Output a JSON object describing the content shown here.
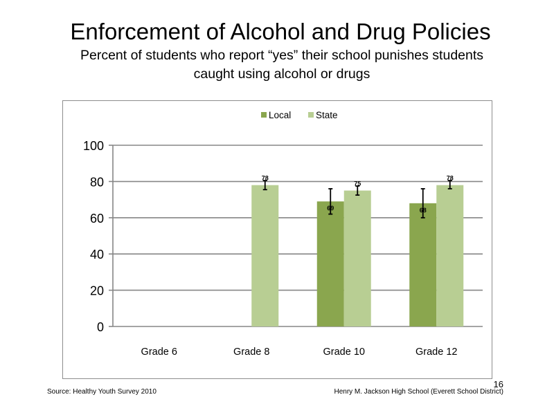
{
  "title": "Enforcement of Alcohol and Drug Policies",
  "subtitle_line1": "Percent of students who report “yes” their school punishes students",
  "subtitle_line2": "caught using alcohol or drugs",
  "footer": {
    "source": "Source: Healthy Youth Survey 2010",
    "school": "Henry M. Jackson High School (Everett School District)",
    "page_number": "16"
  },
  "colors": {
    "local": "#8aa64e",
    "state": "#b8ce93",
    "grid": "#868686",
    "axis": "#868686"
  },
  "chart_data": {
    "type": "bar",
    "title": "",
    "xlabel": "",
    "ylabel": "",
    "categories": [
      "Grade 6",
      "Grade 8",
      "Grade 10",
      "Grade 12"
    ],
    "ylim": [
      0,
      100
    ],
    "yticks": [
      0,
      20,
      40,
      60,
      80,
      100
    ],
    "legend_position": "top-center",
    "grid": true,
    "series": [
      {
        "name": "Local",
        "values": [
          null,
          null,
          69,
          68
        ],
        "labels": [
          "",
          "",
          "69",
          "68"
        ],
        "error_low": [
          null,
          null,
          62,
          60
        ],
        "error_high": [
          null,
          null,
          76,
          76
        ]
      },
      {
        "name": "State",
        "values": [
          null,
          78,
          75,
          78
        ],
        "labels": [
          "",
          "78",
          "75",
          "78"
        ],
        "error_low": [
          null,
          75.5,
          72.5,
          76
        ],
        "error_high": [
          null,
          80.5,
          77.5,
          80.5
        ]
      }
    ]
  }
}
